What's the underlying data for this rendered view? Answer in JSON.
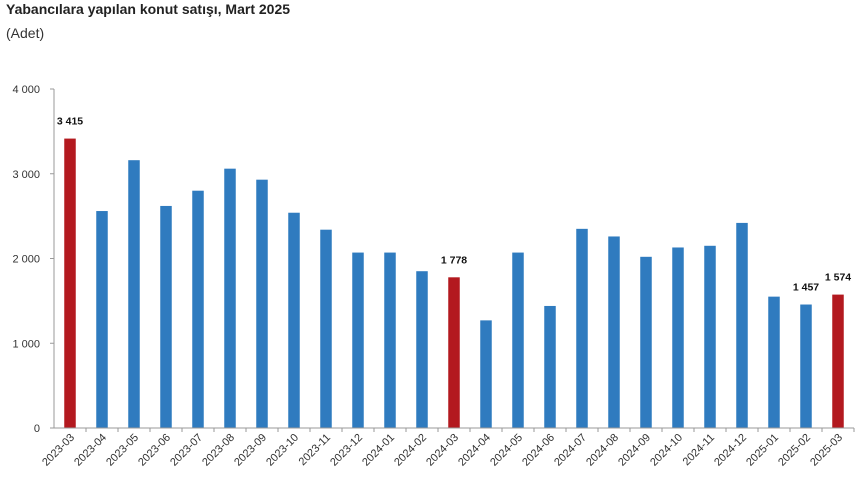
{
  "header": {
    "title": "Yabancılara yapılan konut satışı, Mart 2025",
    "subtitle": "(Adet)"
  },
  "chart_data": {
    "type": "bar",
    "title": "Yabancılara yapılan konut satışı, Mart 2025",
    "subtitle": "(Adet)",
    "xlabel": "",
    "ylabel": "",
    "ylim": [
      0,
      4000
    ],
    "yticks": [
      0,
      1000,
      2000,
      3000,
      4000
    ],
    "ytick_labels": [
      "0",
      "1 000",
      "2 000",
      "3 000",
      "4 000"
    ],
    "grid": false,
    "legend": "none",
    "categories": [
      "2023-03",
      "2023-04",
      "2023-05",
      "2023-06",
      "2023-07",
      "2023-08",
      "2023-09",
      "2023-10",
      "2023-11",
      "2023-12",
      "2024-01",
      "2024-02",
      "2024-03",
      "2024-04",
      "2024-05",
      "2024-06",
      "2024-07",
      "2024-08",
      "2024-09",
      "2024-10",
      "2024-11",
      "2024-12",
      "2025-01",
      "2025-02",
      "2025-03"
    ],
    "values": [
      3415,
      2560,
      3160,
      2620,
      2800,
      3060,
      2930,
      2540,
      2340,
      2070,
      2070,
      1850,
      1778,
      1270,
      2070,
      1440,
      2350,
      2260,
      2020,
      2130,
      2150,
      2420,
      1550,
      1457,
      1574
    ],
    "highlight_indices": [
      0,
      12,
      24
    ],
    "data_labels": [
      {
        "index": 0,
        "text": "3 415"
      },
      {
        "index": 12,
        "text": "1 778"
      },
      {
        "index": 23,
        "text": "1 457"
      },
      {
        "index": 24,
        "text": "1 574"
      }
    ],
    "colors": {
      "bar": "#2f7bbf",
      "highlight": "#b3191f",
      "axis": "#999999"
    }
  }
}
